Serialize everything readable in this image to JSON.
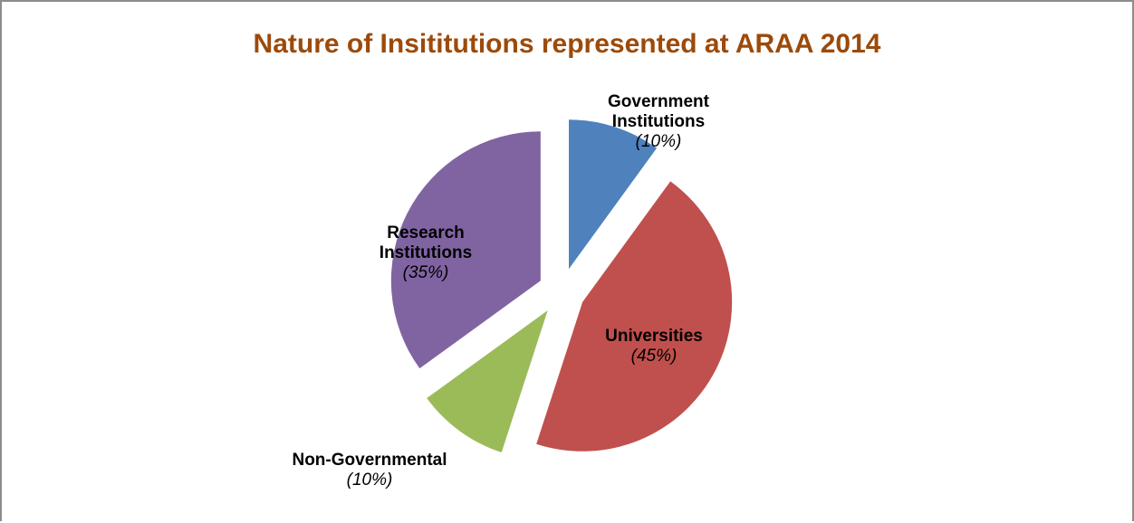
{
  "chart_data": {
    "type": "pie",
    "title": "Nature of Insititutions represented at ARAA 2014",
    "categories": [
      "Government Institutions",
      "Universities",
      "Non-Governmental",
      "Research Institutions"
    ],
    "values": [
      10,
      45,
      10,
      35
    ],
    "value_labels": [
      "(10%)",
      "(45%)",
      "(10%)",
      "(35%)"
    ],
    "colors": [
      "#4f81bd",
      "#c0504d",
      "#9bbb59",
      "#8064a2"
    ]
  }
}
